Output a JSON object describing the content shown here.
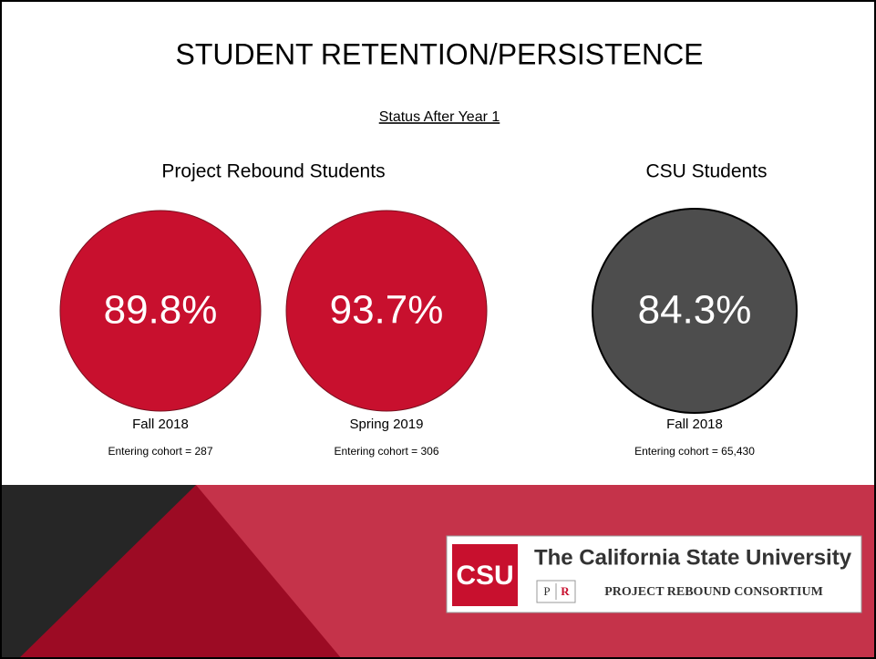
{
  "title": "STUDENT RETENTION/PERSISTENCE",
  "subtitle": "Status After Year 1",
  "groups": [
    {
      "heading": "Project Rebound Students",
      "items": [
        {
          "value": "89.8%",
          "term": "Fall 2018",
          "cohort": "Entering cohort = 287"
        },
        {
          "value": "93.7%",
          "term": "Spring 2019",
          "cohort": "Entering cohort = 306"
        }
      ]
    },
    {
      "heading": "CSU Students",
      "items": [
        {
          "value": "84.3%",
          "term": "Fall 2018",
          "cohort": "Entering cohort = 65,430"
        }
      ]
    }
  ],
  "logo": {
    "mark": "CSU",
    "name": "The California State University",
    "p": "P",
    "r": "R",
    "consortium": "PROJECT REBOUND CONSORTIUM"
  }
}
